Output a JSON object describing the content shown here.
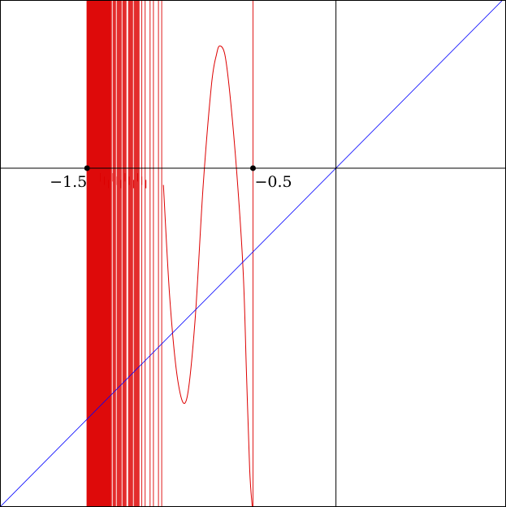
{
  "chart_data": {
    "type": "line",
    "title": "",
    "xlabel": "",
    "ylabel": "",
    "xlim": [
      -2.02,
      1.02
    ],
    "ylim": [
      -2.02,
      1.0
    ],
    "grid": false,
    "legend": "none",
    "tick_labels": [
      {
        "value": -1.5,
        "text": "−1.5"
      },
      {
        "value": -0.5,
        "text": "−0.5"
      }
    ],
    "marked_points": [
      {
        "x": -1.5,
        "y": 0
      },
      {
        "x": -0.5,
        "y": 0
      }
    ],
    "series": [
      {
        "color": "#dd0000",
        "style": "oscillating curve with vertical asymptotes",
        "x": [
          -1.04,
          -1.0,
          -0.95,
          -0.9,
          -0.85,
          -0.8,
          -0.75,
          -0.72,
          -0.7,
          -0.67,
          -0.64,
          -0.6,
          -0.56,
          -0.54,
          -0.52,
          -0.505
        ],
        "y": [
          -0.1,
          -0.8,
          -1.29,
          -1.38,
          -0.92,
          -0.1,
          0.5,
          0.68,
          0.73,
          0.68,
          0.45,
          0.0,
          -0.6,
          -1.2,
          -1.8,
          -2.02
        ]
      },
      {
        "color": "#0000ff",
        "style": "straight line y = x",
        "x": [
          -2.02,
          1.02
        ],
        "y": [
          -2.02,
          1.02
        ]
      }
    ],
    "dense_band_x": [
      -1.5,
      -1.18
    ],
    "vertical_lines_x": [
      -1.05,
      -1.07,
      -1.1,
      -1.12,
      -1.15,
      -1.17,
      -0.5
    ]
  }
}
